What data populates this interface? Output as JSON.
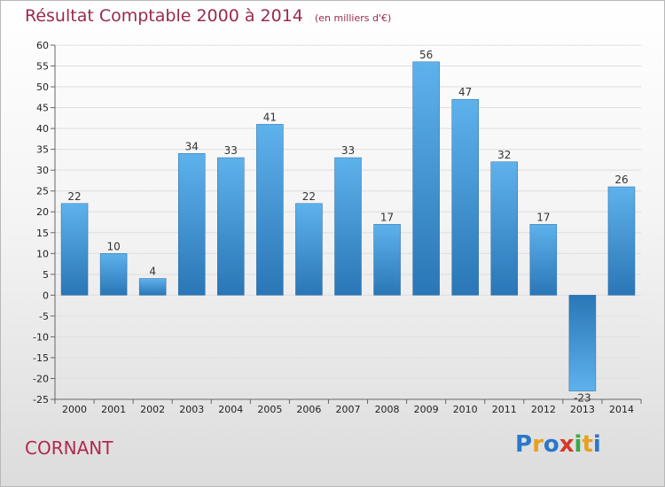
{
  "chart_data": {
    "type": "bar",
    "title": "Résultat Comptable 2000 à 2014",
    "subtitle": "(en milliers d'€)",
    "categories": [
      "2000",
      "2001",
      "2002",
      "2003",
      "2004",
      "2005",
      "2006",
      "2007",
      "2008",
      "2009",
      "2010",
      "2011",
      "2012",
      "2013",
      "2014"
    ],
    "values": [
      22,
      10,
      4,
      34,
      33,
      41,
      22,
      33,
      17,
      56,
      47,
      32,
      17,
      -23,
      26
    ],
    "data_labels": [
      "22",
      "10",
      "4",
      "34",
      "33",
      "41",
      "22",
      "33",
      "17",
      "56",
      "47",
      "32",
      "17",
      "-23",
      "26"
    ],
    "ylim": [
      -25,
      60
    ],
    "yticks": [
      60,
      55,
      50,
      45,
      40,
      35,
      30,
      25,
      20,
      15,
      10,
      5,
      0,
      -5,
      -10,
      -15,
      -20,
      -25
    ],
    "ytick_labels": [
      "60",
      "55",
      "50",
      "45",
      "40",
      "35",
      "30",
      "25",
      "20",
      "15",
      "10",
      "5",
      "0",
      "-5",
      "-10",
      "-15",
      "-20",
      "-25"
    ],
    "grid": true,
    "bar_color_top": "#5aaee8",
    "bar_color_bottom": "#2a78b8"
  },
  "commune": "CORNANT",
  "logo": {
    "letters": [
      "P",
      "r",
      "o",
      "x",
      "i",
      "t",
      "i"
    ]
  }
}
